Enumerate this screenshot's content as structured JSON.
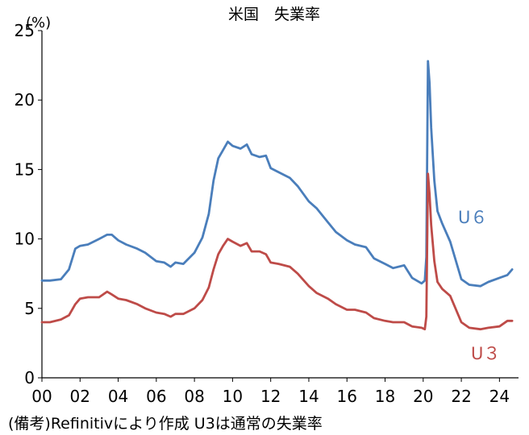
{
  "chart_data": {
    "type": "line",
    "title": "米国　失業率",
    "ylabel": "(%)",
    "xlabel": "",
    "ylim": [
      0,
      25
    ],
    "xlim": [
      2000,
      2025
    ],
    "grid": false,
    "yticks": [
      0,
      5,
      10,
      15,
      20,
      25
    ],
    "xticks": [
      {
        "value": 2000,
        "label": "00"
      },
      {
        "value": 2002,
        "label": "02"
      },
      {
        "value": 2004,
        "label": "04"
      },
      {
        "value": 2006,
        "label": "06"
      },
      {
        "value": 2008,
        "label": "08"
      },
      {
        "value": 2010,
        "label": "10"
      },
      {
        "value": 2012,
        "label": "12"
      },
      {
        "value": 2014,
        "label": "14"
      },
      {
        "value": 2016,
        "label": "16"
      },
      {
        "value": 2018,
        "label": "18"
      },
      {
        "value": 2020,
        "label": "20"
      },
      {
        "value": 2022,
        "label": "22"
      },
      {
        "value": 2024,
        "label": "24"
      }
    ],
    "note": "(備考)Refinitivにより作成 U3は通常の失業率",
    "series": [
      {
        "name": "U６",
        "color": "#4a7ebb",
        "x": [
          "2000-01",
          "2000-06",
          "2001-01",
          "2001-06",
          "2001-10",
          "2002-01",
          "2002-06",
          "2003-01",
          "2003-06",
          "2003-09",
          "2004-01",
          "2004-06",
          "2005-01",
          "2005-06",
          "2006-01",
          "2006-06",
          "2006-10",
          "2007-01",
          "2007-06",
          "2008-01",
          "2008-06",
          "2008-10",
          "2009-01",
          "2009-04",
          "2009-07",
          "2009-10",
          "2010-01",
          "2010-06",
          "2010-10",
          "2011-01",
          "2011-06",
          "2011-10",
          "2012-01",
          "2012-06",
          "2013-01",
          "2013-06",
          "2014-01",
          "2014-06",
          "2015-01",
          "2015-06",
          "2016-01",
          "2016-06",
          "2017-01",
          "2017-06",
          "2018-01",
          "2018-06",
          "2019-01",
          "2019-06",
          "2019-12",
          "2020-02",
          "2020-03",
          "2020-04",
          "2020-05",
          "2020-06",
          "2020-08",
          "2020-10",
          "2021-01",
          "2021-06",
          "2022-01",
          "2022-06",
          "2023-01",
          "2023-06",
          "2024-01",
          "2024-06",
          "2024-09"
        ],
        "values": [
          7.0,
          7.0,
          7.1,
          7.8,
          9.3,
          9.5,
          9.6,
          10.0,
          10.3,
          10.3,
          9.9,
          9.6,
          9.3,
          9.0,
          8.4,
          8.3,
          8.0,
          8.3,
          8.2,
          9.0,
          10.1,
          11.8,
          14.2,
          15.8,
          16.4,
          17.0,
          16.7,
          16.5,
          16.8,
          16.1,
          15.9,
          16.0,
          15.1,
          14.8,
          14.4,
          13.8,
          12.7,
          12.2,
          11.2,
          10.5,
          9.9,
          9.6,
          9.4,
          8.6,
          8.2,
          7.9,
          8.1,
          7.2,
          6.8,
          7.0,
          8.7,
          22.8,
          21.2,
          18.0,
          14.2,
          12.0,
          11.1,
          9.8,
          7.1,
          6.7,
          6.6,
          6.9,
          7.2,
          7.4,
          7.8
        ]
      },
      {
        "name": "U３",
        "color": "#be4b48",
        "x": [
          "2000-01",
          "2000-06",
          "2001-01",
          "2001-06",
          "2001-10",
          "2002-01",
          "2002-06",
          "2003-01",
          "2003-06",
          "2003-09",
          "2004-01",
          "2004-06",
          "2005-01",
          "2005-06",
          "2006-01",
          "2006-06",
          "2006-10",
          "2007-01",
          "2007-06",
          "2008-01",
          "2008-06",
          "2008-10",
          "2009-01",
          "2009-04",
          "2009-07",
          "2009-10",
          "2010-01",
          "2010-06",
          "2010-10",
          "2011-01",
          "2011-06",
          "2011-10",
          "2012-01",
          "2012-06",
          "2013-01",
          "2013-06",
          "2014-01",
          "2014-06",
          "2015-01",
          "2015-06",
          "2016-01",
          "2016-06",
          "2017-01",
          "2017-06",
          "2018-01",
          "2018-06",
          "2019-01",
          "2019-06",
          "2019-12",
          "2020-02",
          "2020-03",
          "2020-04",
          "2020-05",
          "2020-06",
          "2020-08",
          "2020-10",
          "2021-01",
          "2021-06",
          "2022-01",
          "2022-06",
          "2023-01",
          "2023-06",
          "2024-01",
          "2024-06",
          "2024-09"
        ],
        "values": [
          4.0,
          4.0,
          4.2,
          4.5,
          5.3,
          5.7,
          5.8,
          5.8,
          6.2,
          6.0,
          5.7,
          5.6,
          5.3,
          5.0,
          4.7,
          4.6,
          4.4,
          4.6,
          4.6,
          5.0,
          5.6,
          6.5,
          7.8,
          8.9,
          9.5,
          10.0,
          9.8,
          9.5,
          9.7,
          9.1,
          9.1,
          8.9,
          8.3,
          8.2,
          8.0,
          7.5,
          6.6,
          6.1,
          5.7,
          5.3,
          4.9,
          4.9,
          4.7,
          4.3,
          4.1,
          4.0,
          4.0,
          3.7,
          3.6,
          3.5,
          4.4,
          14.7,
          13.2,
          11.0,
          8.4,
          6.9,
          6.4,
          5.9,
          4.0,
          3.6,
          3.5,
          3.6,
          3.7,
          4.1,
          4.1
        ]
      }
    ]
  }
}
